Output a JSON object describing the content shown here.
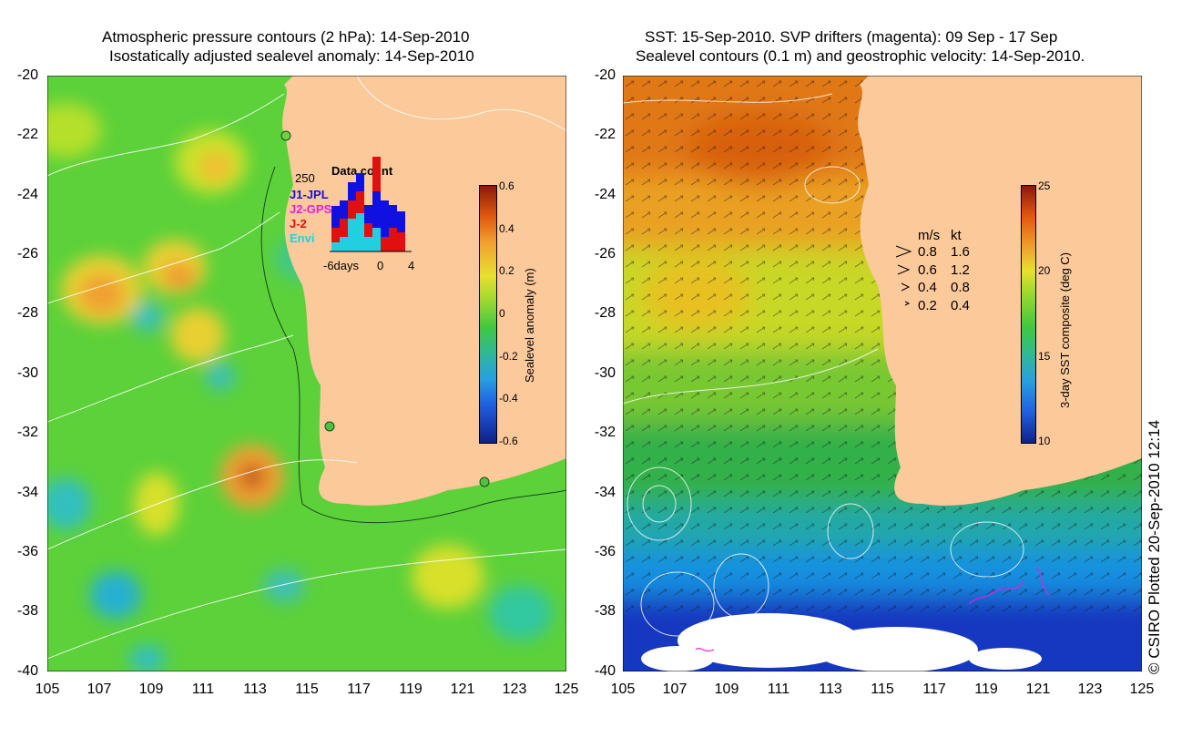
{
  "left_panel": {
    "title_line1": "Atmospheric pressure contours (2 hPa): 14-Sep-2010",
    "title_line2": "Isostatically adjusted sealevel anomaly: 14-Sep-2010",
    "x_ticks": [
      "105",
      "107",
      "109",
      "111",
      "113",
      "115",
      "117",
      "119",
      "121",
      "123",
      "125"
    ],
    "y_ticks": [
      "-20",
      "-22",
      "-24",
      "-26",
      "-28",
      "-30",
      "-32",
      "-34",
      "-36",
      "-38",
      "-40"
    ],
    "colorbar": {
      "title": "Sealevel anomaly (m)",
      "ticks": [
        "0.6",
        "0.4",
        "0.2",
        "0",
        "-0.2",
        "-0.4",
        "-0.6"
      ],
      "range": [
        -0.6,
        0.6
      ]
    },
    "data_count_inset": {
      "title": "Data count",
      "y_max_label": "250",
      "x_labels": [
        "-6days",
        "0",
        "4"
      ],
      "series": [
        {
          "name": "J1-JPL",
          "color": "#1010e0"
        },
        {
          "name": "J2-GPS",
          "color": "#e020e0"
        },
        {
          "name": "J-2",
          "color": "#e01010"
        },
        {
          "name": "Envi",
          "color": "#20d0e0"
        }
      ]
    }
  },
  "right_panel": {
    "title_line1": "SST: 15-Sep-2010. SVP drifters (magenta): 09 Sep - 17 Sep",
    "title_line2": "Sealevel contours (0.1 m) and geostrophic velocity: 14-Sep-2010.",
    "x_ticks": [
      "105",
      "107",
      "109",
      "111",
      "113",
      "115",
      "117",
      "119",
      "121",
      "123",
      "125"
    ],
    "y_ticks": [
      "-20",
      "-22",
      "-24",
      "-26",
      "-28",
      "-30",
      "-32",
      "-34",
      "-36",
      "-38",
      "-40"
    ],
    "colorbar": {
      "title": "3-day SST composite (deg C)",
      "ticks": [
        "25",
        "20",
        "15",
        "10"
      ],
      "range": [
        10,
        25
      ]
    },
    "velocity_legend": {
      "header_ms": "m/s",
      "header_kt": "kt",
      "rows": [
        {
          "ms": "0.8",
          "kt": "1.6"
        },
        {
          "ms": "0.6",
          "kt": "1.2"
        },
        {
          "ms": "0.4",
          "kt": "0.8"
        },
        {
          "ms": "0.2",
          "kt": "0.4"
        }
      ]
    }
  },
  "credit": "© CSIRO Plotted 20-Sep-2010 12:14",
  "colors": {
    "land": "#fcc99b",
    "sla_green": "#5cd13a",
    "contour": "#ffffff",
    "drifter": "#e020e0"
  }
}
